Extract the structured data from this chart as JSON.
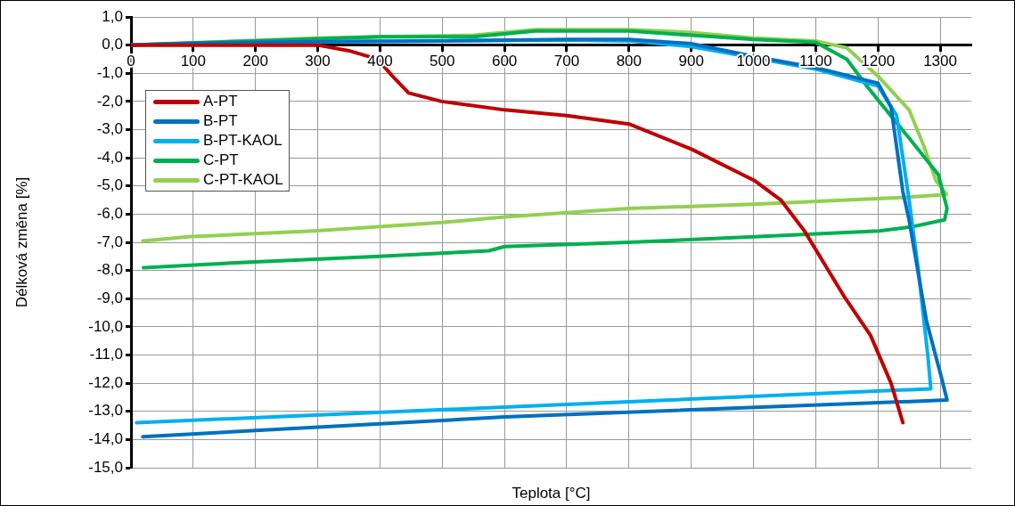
{
  "chart_data": {
    "type": "line",
    "xlabel": "Teplota [°C]",
    "ylabel": "Délková změna [%]",
    "xlim": [
      0,
      1350
    ],
    "xticks": [
      0,
      100,
      200,
      300,
      400,
      500,
      600,
      700,
      800,
      900,
      1000,
      1100,
      1200,
      1300
    ],
    "ylim": [
      -15,
      1
    ],
    "yticks": [
      {
        "value": 1,
        "label": "1,0"
      },
      {
        "value": 0,
        "label": "0,0"
      },
      {
        "value": -1,
        "label": "-1,0"
      },
      {
        "value": -2,
        "label": "-2,0"
      },
      {
        "value": -3,
        "label": "-3,0"
      },
      {
        "value": -4,
        "label": "-4,0"
      },
      {
        "value": -5,
        "label": "-5,0"
      },
      {
        "value": -6,
        "label": "-6,0"
      },
      {
        "value": -7,
        "label": "-7,0"
      },
      {
        "value": -8,
        "label": "-8,0"
      },
      {
        "value": -9,
        "label": "-9,0"
      },
      {
        "value": -10,
        "label": "-10,0"
      },
      {
        "value": -11,
        "label": "-11,0"
      },
      {
        "value": -12,
        "label": "-12,0"
      },
      {
        "value": -13,
        "label": "-13,0"
      },
      {
        "value": -14,
        "label": "-14,0"
      },
      {
        "value": -15,
        "label": "-15,0"
      }
    ],
    "grid": true,
    "legend": "top left",
    "series": [
      {
        "name": "A-PT",
        "color": "#c00000",
        "x": [
          0,
          100,
          200,
          300,
          350,
          396,
          420,
          446,
          499,
          600,
          700,
          800,
          901,
          1001,
          1044,
          1082,
          1145,
          1188,
          1221,
          1240
        ],
        "values": [
          0,
          0,
          0,
          0,
          -0.2,
          -0.5,
          -1.1,
          -1.7,
          -2.0,
          -2.3,
          -2.5,
          -2.8,
          -3.7,
          -4.8,
          -5.5,
          -6.6,
          -8.9,
          -10.3,
          -12.0,
          -13.4
        ]
      },
      {
        "name": "B-PT",
        "color": "#0070c0",
        "x": [
          0,
          100,
          200,
          300,
          500,
          700,
          800,
          900,
          1000,
          1100,
          1200,
          1221,
          1240,
          1250,
          1278,
          1302,
          1311,
          600,
          19
        ],
        "values": [
          0,
          0.07,
          0.1,
          0.12,
          0.15,
          0.2,
          0.2,
          0.05,
          -0.4,
          -0.8,
          -1.35,
          -2.2,
          -5.2,
          -6.2,
          -9.8,
          -11.8,
          -12.6,
          -13.2,
          -13.9
        ]
      },
      {
        "name": "B-PT-KAOL",
        "color": "#00b0f0",
        "x": [
          200,
          300,
          500,
          700,
          800,
          900,
          1000,
          1100,
          1200,
          1230,
          1250,
          1265,
          1280,
          1285,
          600,
          9
        ],
        "values": [
          0.1,
          0.12,
          0.15,
          0.18,
          0.15,
          -0.05,
          -0.45,
          -0.85,
          -1.45,
          -2.5,
          -5.5,
          -8.0,
          -11.0,
          -12.2,
          -12.85,
          -13.4
        ]
      },
      {
        "name": "C-PT",
        "color": "#00b050",
        "x": [
          0,
          200,
          400,
          550,
          650,
          800,
          900,
          1000,
          1100,
          1150,
          1182,
          1202,
          1250,
          1297,
          1311,
          1307,
          1254,
          1202,
          1001,
          800,
          600,
          575,
          399,
          192,
          20
        ],
        "values": [
          0,
          0.15,
          0.3,
          0.3,
          0.5,
          0.5,
          0.35,
          0.2,
          0.1,
          -0.5,
          -1.45,
          -2.0,
          -3.3,
          -4.6,
          -5.8,
          -6.2,
          -6.45,
          -6.6,
          -6.8,
          -7.0,
          -7.15,
          -7.3,
          -7.5,
          -7.7,
          -7.9
        ]
      },
      {
        "name": "C-PT-KAOL",
        "color": "#92d050",
        "x": [
          0,
          300,
          400,
          550,
          650,
          800,
          900,
          1000,
          1100,
          1150,
          1200,
          1250,
          1274,
          1293,
          1310,
          1245,
          1000,
          800,
          600,
          499,
          293,
          92,
          19
        ],
        "values": [
          0,
          0.25,
          0.3,
          0.35,
          0.55,
          0.55,
          0.45,
          0.25,
          0.15,
          -0.1,
          -1.1,
          -2.3,
          -3.6,
          -4.8,
          -5.3,
          -5.4,
          -5.65,
          -5.8,
          -6.1,
          -6.3,
          -6.6,
          -6.8,
          -6.95
        ]
      }
    ]
  }
}
